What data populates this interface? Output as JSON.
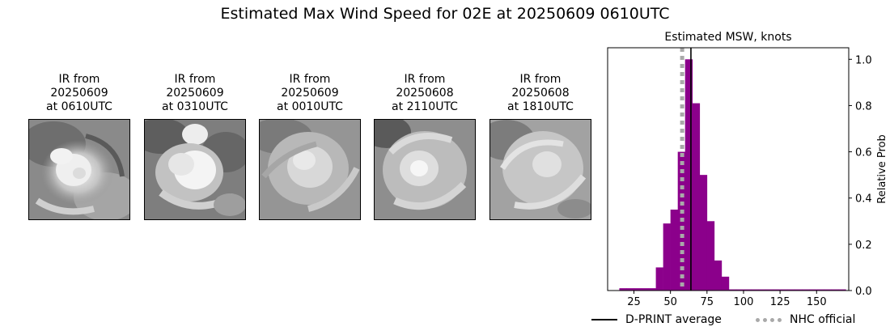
{
  "figure": {
    "title": "Estimated Max Wind Speed for 02E at 20250609 0610UTC"
  },
  "ir_panels": [
    {
      "line1": "IR from",
      "line2": "20250609",
      "line3": "at 0610UTC"
    },
    {
      "line1": "IR from",
      "line2": "20250609",
      "line3": "at 0310UTC"
    },
    {
      "line1": "IR from",
      "line2": "20250609",
      "line3": "at 0010UTC"
    },
    {
      "line1": "IR from",
      "line2": "20250608",
      "line3": "at 2110UTC"
    },
    {
      "line1": "IR from",
      "line2": "20250608",
      "line3": "at 1810UTC"
    }
  ],
  "chart_data": {
    "type": "bar",
    "title": "Estimated MSW, knots",
    "xlabel": "",
    "ylabel": "Relative Prob",
    "xlim": [
      7,
      172
    ],
    "ylim": [
      0,
      1.05
    ],
    "xticks": [
      25,
      50,
      75,
      100,
      125,
      150
    ],
    "yticks": [
      0.0,
      0.2,
      0.4,
      0.6,
      0.8,
      1.0
    ],
    "bar_color": "#8b008b",
    "bin_width": 5,
    "bins": [
      {
        "x0": 15,
        "value": 0.01
      },
      {
        "x0": 20,
        "value": 0.01
      },
      {
        "x0": 25,
        "value": 0.01
      },
      {
        "x0": 30,
        "value": 0.01
      },
      {
        "x0": 35,
        "value": 0.01
      },
      {
        "x0": 40,
        "value": 0.1
      },
      {
        "x0": 45,
        "value": 0.29
      },
      {
        "x0": 50,
        "value": 0.35
      },
      {
        "x0": 55,
        "value": 0.6
      },
      {
        "x0": 60,
        "value": 1.0
      },
      {
        "x0": 65,
        "value": 0.81
      },
      {
        "x0": 70,
        "value": 0.5
      },
      {
        "x0": 75,
        "value": 0.3
      },
      {
        "x0": 80,
        "value": 0.13
      },
      {
        "x0": 85,
        "value": 0.06
      },
      {
        "x0": 90,
        "value": 0.005
      },
      {
        "x0": 95,
        "value": 0.005
      },
      {
        "x0": 100,
        "value": 0.005
      },
      {
        "x0": 105,
        "value": 0.005
      },
      {
        "x0": 110,
        "value": 0.005
      },
      {
        "x0": 115,
        "value": 0.005
      },
      {
        "x0": 120,
        "value": 0.005
      },
      {
        "x0": 125,
        "value": 0.005
      },
      {
        "x0": 130,
        "value": 0.005
      },
      {
        "x0": 135,
        "value": 0.005
      },
      {
        "x0": 140,
        "value": 0.005
      },
      {
        "x0": 145,
        "value": 0.005
      },
      {
        "x0": 150,
        "value": 0.005
      },
      {
        "x0": 155,
        "value": 0.005
      },
      {
        "x0": 160,
        "value": 0.005
      },
      {
        "x0": 165,
        "value": 0.005
      }
    ],
    "lines": [
      {
        "name": "D-PRINT average",
        "x": 64,
        "color": "#000000",
        "style": "solid"
      },
      {
        "name": "NHC official",
        "x": 58,
        "color": "#a9a9a9",
        "style": "dotted"
      }
    ],
    "legend_position": "bottom"
  }
}
